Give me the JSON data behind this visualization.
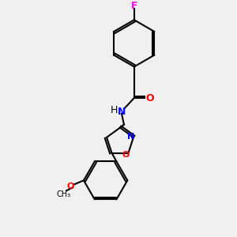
{
  "bg_color": "#f0f0f0",
  "bond_color": "#000000",
  "atom_colors": {
    "F": "#ff00ff",
    "O": "#ff0000",
    "N": "#0000ff",
    "C": "#000000",
    "H": "#000000"
  },
  "figsize": [
    3.0,
    3.0
  ],
  "dpi": 100
}
